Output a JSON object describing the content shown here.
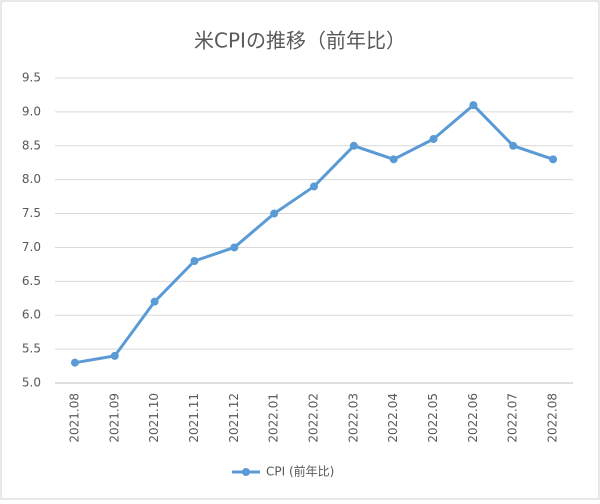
{
  "chart_data": {
    "type": "line",
    "title": "米CPIの推移（前年比）",
    "categories": [
      "2021.08",
      "2021.09",
      "2021.10",
      "2021.11",
      "2021.12",
      "2022.01",
      "2022.02",
      "2022.03",
      "2022.04",
      "2022.05",
      "2022.06",
      "2022.07",
      "2022.08"
    ],
    "series": [
      {
        "name": "CPI (前年比)",
        "color": "#5b9bd5",
        "values": [
          5.3,
          5.4,
          6.2,
          6.8,
          7.0,
          7.5,
          7.9,
          8.5,
          8.3,
          8.6,
          9.1,
          8.5,
          8.3
        ]
      }
    ],
    "ylim": [
      5.0,
      9.5
    ],
    "yticks": [
      {
        "value": 5.0,
        "label": "5.0"
      },
      5.5,
      {
        "value": 6.0,
        "label": "6.0"
      },
      6.5,
      {
        "value": 7.0,
        "label": "7.0"
      },
      7.5,
      {
        "value": 8.0,
        "label": "8.0"
      },
      8.5,
      {
        "value": 9.0,
        "label": "9.0"
      },
      9.5
    ],
    "grid": true,
    "legend": "bottom"
  }
}
